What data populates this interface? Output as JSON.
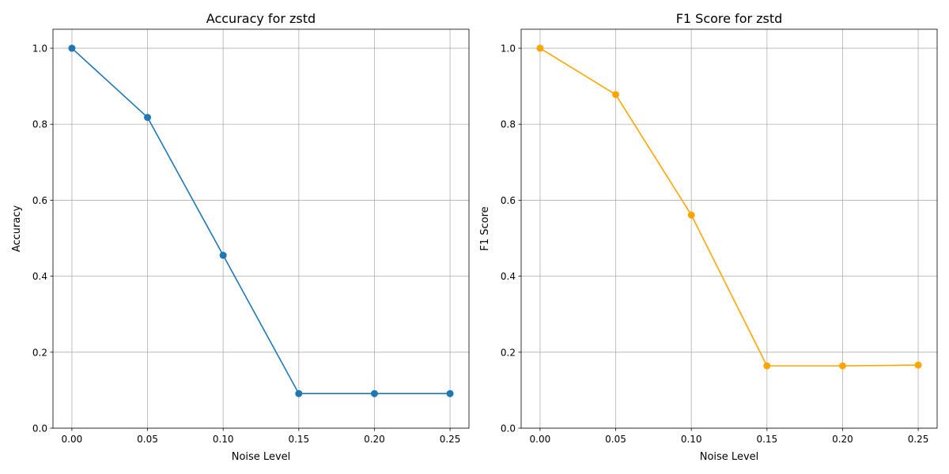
{
  "chart_data": [
    {
      "type": "line",
      "title": "Accuracy for zstd",
      "xlabel": "Noise Level",
      "ylabel": "Accuracy",
      "x": [
        0.0,
        0.05,
        0.1,
        0.15,
        0.2,
        0.25
      ],
      "x_tick_labels": [
        "0.00",
        "0.05",
        "0.10",
        "0.15",
        "0.20",
        "0.25"
      ],
      "xlim": [
        -0.0125,
        0.2625
      ],
      "ylim": [
        0.0,
        1.05
      ],
      "y_ticks": [
        0.0,
        0.2,
        0.4,
        0.6,
        0.8,
        1.0
      ],
      "y_tick_labels": [
        "0.0",
        "0.2",
        "0.4",
        "0.6",
        "0.8",
        "1.0"
      ],
      "grid": true,
      "color": "#1f77b4",
      "series": [
        {
          "values": [
            1.0,
            0.818,
            0.455,
            0.091,
            0.091,
            0.091
          ]
        }
      ]
    },
    {
      "type": "line",
      "title": "F1 Score for zstd",
      "xlabel": "Noise Level",
      "ylabel": "F1 Score",
      "x": [
        0.0,
        0.05,
        0.1,
        0.15,
        0.2,
        0.25
      ],
      "x_tick_labels": [
        "0.00",
        "0.05",
        "0.10",
        "0.15",
        "0.20",
        "0.25"
      ],
      "xlim": [
        -0.0125,
        0.2625
      ],
      "ylim": [
        0.0,
        1.05
      ],
      "y_ticks": [
        0.0,
        0.2,
        0.4,
        0.6,
        0.8,
        1.0
      ],
      "y_tick_labels": [
        "0.0",
        "0.2",
        "0.4",
        "0.6",
        "0.8",
        "1.0"
      ],
      "grid": true,
      "color": "#ffa500",
      "series": [
        {
          "values": [
            1.0,
            0.878,
            0.561,
            0.164,
            0.164,
            0.166
          ]
        }
      ]
    }
  ]
}
